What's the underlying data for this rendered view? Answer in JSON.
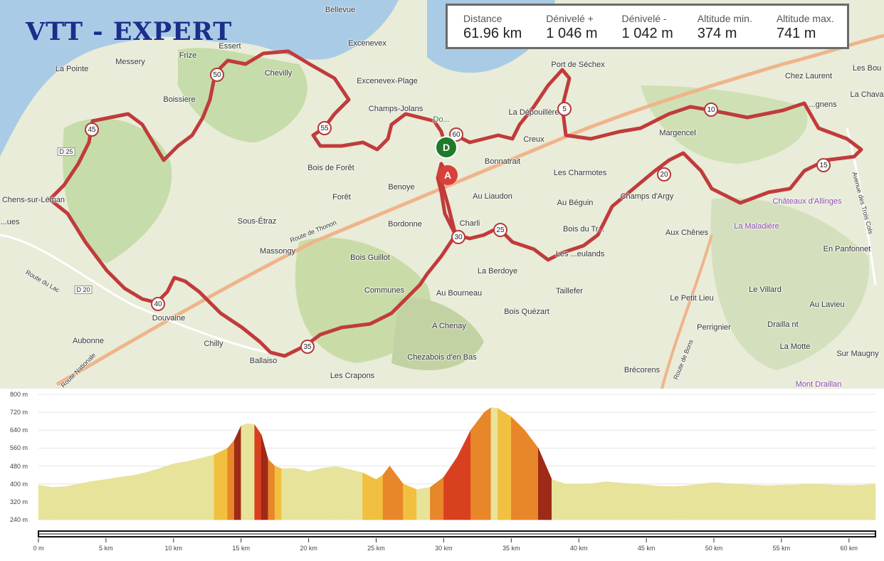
{
  "title": "VTT - EXPERT",
  "stats": [
    {
      "label": "Distance",
      "value": "61.96 km"
    },
    {
      "label": "Dénivelé +",
      "value": "1 046 m"
    },
    {
      "label": "Dénivelé -",
      "value": "1 042 m"
    },
    {
      "label": "Altitude min.",
      "value": "374 m"
    },
    {
      "label": "Altitude max.",
      "value": "741 m"
    }
  ],
  "places": [
    "Bellevue",
    "Excenevex",
    "Essert",
    "Messery",
    "Frize",
    "La Pointe",
    "Chevilly",
    "Excenevex-Plage",
    "Boissiere",
    "Champs-Jolans",
    "Port de Séchex",
    "Chez Laurent",
    "La Dépouillère",
    "Margencel",
    "Creux",
    "Bonnatrait",
    "Bois de Forêt",
    "Benoye",
    "Forêt",
    "Les Charmotes",
    "Au Liaudon",
    "Au Béguin",
    "Champs d'Argy",
    "Sous-Étraz",
    "Bordonne",
    "Charli",
    "Bois du Tr...",
    "Aux Chênes",
    "Massongy",
    "Bois Guillot",
    "La Berdoye",
    "Les ...eulands",
    "Communes",
    "Au Bourneau",
    "Taillefer",
    "Le Petit Lieu",
    "Bois Quézart",
    "Douvaine",
    "A Chenay",
    "Perrignier",
    "Aubonne",
    "Chilly",
    "Chezabois d'en Bas",
    "Les Crapons",
    "Brécorens",
    "Ballaiso",
    "La Maladière",
    "Le Villard",
    "Drailla nt",
    "La Motte",
    "Sur Maugny",
    "Mont Draillan",
    "En Panfonnet",
    "Au Lavieu",
    "Chens-sur-Léman",
    "Châteaux d'Allinges",
    "Les Bou",
    "La Chava",
    "...gnens",
    "...ues",
    "Route de Thonon",
    "Route du Lac",
    "Route Nationale",
    "D 25",
    "D 20",
    "Avenue des Trois Cols",
    "Route de Bons",
    "Do..."
  ],
  "km_markers": [
    "5",
    "10",
    "15",
    "20",
    "25",
    "30",
    "35",
    "40",
    "45",
    "50",
    "55",
    "60"
  ],
  "start_label": "D",
  "end_label": "A",
  "chart_data": {
    "type": "area",
    "ylabel": "",
    "y_tick_labels": [
      "800 m",
      "720 m",
      "640 m",
      "560 m",
      "480 m",
      "400 m",
      "320 m",
      "240 m"
    ],
    "y_ticks": [
      800,
      720,
      640,
      560,
      480,
      400,
      320,
      240
    ],
    "ylim": [
      240,
      800
    ],
    "x_tick_labels": [
      "0 m",
      "5 km",
      "10 km",
      "15 km",
      "20 km",
      "25 km",
      "30 km",
      "35 km",
      "40 km",
      "45 km",
      "50 km",
      "55 km",
      "60 km"
    ],
    "x_ticks": [
      0,
      5,
      10,
      15,
      20,
      25,
      30,
      35,
      40,
      45,
      50,
      55,
      60
    ],
    "xlim": [
      0,
      61.96
    ],
    "x": [
      0,
      1,
      2,
      3,
      4,
      5,
      6,
      7,
      8,
      9,
      10,
      11,
      12,
      13,
      14,
      14.5,
      15,
      15.5,
      16,
      16.5,
      17,
      17.5,
      18,
      19,
      20,
      21,
      22,
      23,
      24,
      25,
      25.5,
      26,
      26.5,
      27,
      28,
      29,
      30,
      31,
      32,
      33,
      33.5,
      34,
      35,
      36,
      37,
      38,
      39,
      40,
      41,
      42,
      43,
      44,
      45,
      46,
      47,
      48,
      49,
      50,
      51,
      52,
      53,
      54,
      55,
      56,
      57,
      58,
      59,
      60,
      61,
      61.96
    ],
    "elevation": [
      395,
      385,
      388,
      400,
      412,
      420,
      430,
      438,
      452,
      470,
      490,
      500,
      515,
      530,
      560,
      595,
      660,
      670,
      665,
      620,
      510,
      480,
      468,
      470,
      455,
      470,
      478,
      465,
      450,
      420,
      440,
      480,
      440,
      400,
      375,
      385,
      430,
      520,
      640,
      720,
      741,
      738,
      700,
      640,
      560,
      420,
      400,
      398,
      402,
      410,
      405,
      400,
      395,
      390,
      388,
      392,
      400,
      406,
      402,
      398,
      395,
      392,
      395,
      396,
      400,
      398,
      395,
      393,
      395,
      400
    ],
    "slope_colors": {
      "flat": "#e8e39a",
      "light": "#f2c040",
      "moderate": "#e8862a",
      "steep": "#d9401f",
      "very_steep": "#9e2a18"
    }
  }
}
